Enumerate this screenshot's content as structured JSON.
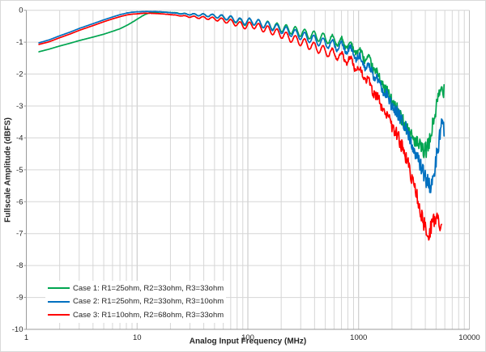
{
  "chart_data": {
    "type": "line",
    "title": "",
    "xlabel": "Analog Input Frequency (MHz)",
    "ylabel": "Fullscale Amplitude (dBFS)",
    "x_axis": {
      "scale": "log",
      "min": 1,
      "max": 10000,
      "tick_labels": [
        "1",
        "10",
        "100",
        "1000",
        "10000"
      ],
      "minor_grid": true
    },
    "y_axis": {
      "min": -10,
      "max": 0,
      "tick_labels": [
        "0",
        "-1",
        "-2",
        "-3",
        "-4",
        "-5",
        "-6",
        "-7",
        "-8",
        "-9",
        "-10"
      ],
      "major_grid": true
    },
    "legend_position": "inside-bottom-left",
    "colors": {
      "grid": "#d6d6d6",
      "decade_grid": "#c3c3c3",
      "axis": "#9b9b9b",
      "text": "#262626"
    },
    "series": [
      {
        "name": "Case 1: R1=25ohm, R2=33ohm, R3=33ohm",
        "color": "#00A550",
        "points": [
          [
            1.3,
            -1.3
          ],
          [
            1.6,
            -1.22
          ],
          [
            2,
            -1.12
          ],
          [
            2.5,
            -1.03
          ],
          [
            3,
            -0.95
          ],
          [
            4,
            -0.84
          ],
          [
            5,
            -0.75
          ],
          [
            6,
            -0.66
          ],
          [
            7,
            -0.58
          ],
          [
            8,
            -0.48
          ],
          [
            9,
            -0.38
          ],
          [
            10,
            -0.28
          ],
          [
            11,
            -0.19
          ],
          [
            12,
            -0.12
          ],
          [
            13,
            -0.08
          ],
          [
            15,
            -0.06
          ],
          [
            18,
            -0.06
          ],
          [
            22,
            -0.08
          ],
          [
            28,
            -0.12
          ],
          [
            35,
            -0.14
          ],
          [
            45,
            -0.16
          ],
          [
            55,
            -0.2
          ],
          [
            70,
            -0.26
          ],
          [
            85,
            -0.35
          ],
          [
            95,
            -0.38
          ],
          [
            110,
            -0.35
          ],
          [
            130,
            -0.42
          ],
          [
            160,
            -0.48
          ],
          [
            200,
            -0.55
          ],
          [
            250,
            -0.62
          ],
          [
            320,
            -0.72
          ],
          [
            400,
            -0.8
          ],
          [
            500,
            -0.88
          ],
          [
            650,
            -0.97
          ],
          [
            800,
            -1.07
          ],
          [
            1000,
            -1.3
          ],
          [
            1200,
            -1.55
          ],
          [
            1400,
            -1.85
          ],
          [
            1800,
            -2.55
          ],
          [
            2300,
            -3.2
          ],
          [
            2900,
            -3.85
          ],
          [
            3400,
            -4.2
          ],
          [
            3900,
            -4.45
          ],
          [
            4300,
            -4.25
          ],
          [
            4700,
            -3.55
          ],
          [
            5100,
            -2.95
          ],
          [
            5500,
            -2.5
          ],
          [
            5900,
            -2.45
          ]
        ]
      },
      {
        "name": "Case 2: R1=25ohm, R2=33ohm, R3=10ohm",
        "color": "#0070C0",
        "points": [
          [
            1.3,
            -1.02
          ],
          [
            1.6,
            -0.93
          ],
          [
            2,
            -0.8
          ],
          [
            2.5,
            -0.68
          ],
          [
            3,
            -0.57
          ],
          [
            4,
            -0.42
          ],
          [
            5,
            -0.3
          ],
          [
            6,
            -0.21
          ],
          [
            7,
            -0.14
          ],
          [
            8,
            -0.09
          ],
          [
            9,
            -0.06
          ],
          [
            10,
            -0.05
          ],
          [
            12,
            -0.04
          ],
          [
            15,
            -0.04
          ],
          [
            18,
            -0.06
          ],
          [
            22,
            -0.09
          ],
          [
            28,
            -0.12
          ],
          [
            35,
            -0.14
          ],
          [
            45,
            -0.16
          ],
          [
            55,
            -0.19
          ],
          [
            70,
            -0.25
          ],
          [
            85,
            -0.33
          ],
          [
            95,
            -0.36
          ],
          [
            110,
            -0.34
          ],
          [
            130,
            -0.42
          ],
          [
            160,
            -0.5
          ],
          [
            200,
            -0.6
          ],
          [
            250,
            -0.7
          ],
          [
            320,
            -0.82
          ],
          [
            400,
            -0.93
          ],
          [
            500,
            -1.03
          ],
          [
            650,
            -1.12
          ],
          [
            800,
            -1.22
          ],
          [
            1000,
            -1.5
          ],
          [
            1200,
            -1.75
          ],
          [
            1400,
            -2.05
          ],
          [
            1800,
            -2.7
          ],
          [
            2300,
            -3.3
          ],
          [
            2900,
            -3.95
          ],
          [
            3400,
            -4.6
          ],
          [
            3900,
            -5.15
          ],
          [
            4400,
            -5.55
          ],
          [
            4800,
            -5.05
          ],
          [
            5200,
            -4.3
          ],
          [
            5600,
            -3.6
          ],
          [
            5900,
            -3.7
          ]
        ]
      },
      {
        "name": "Case 3: R1=10ohm, R2=68ohm, R3=33ohm",
        "color": "#FF0000",
        "points": [
          [
            1.3,
            -1.07
          ],
          [
            1.6,
            -0.99
          ],
          [
            2,
            -0.86
          ],
          [
            2.5,
            -0.74
          ],
          [
            3,
            -0.63
          ],
          [
            4,
            -0.48
          ],
          [
            5,
            -0.36
          ],
          [
            6,
            -0.27
          ],
          [
            7,
            -0.2
          ],
          [
            8,
            -0.15
          ],
          [
            9,
            -0.12
          ],
          [
            10,
            -0.11
          ],
          [
            12,
            -0.09
          ],
          [
            15,
            -0.1
          ],
          [
            18,
            -0.12
          ],
          [
            22,
            -0.15
          ],
          [
            28,
            -0.19
          ],
          [
            35,
            -0.22
          ],
          [
            45,
            -0.25
          ],
          [
            55,
            -0.29
          ],
          [
            70,
            -0.36
          ],
          [
            85,
            -0.45
          ],
          [
            95,
            -0.49
          ],
          [
            110,
            -0.46
          ],
          [
            130,
            -0.54
          ],
          [
            160,
            -0.63
          ],
          [
            200,
            -0.75
          ],
          [
            250,
            -0.88
          ],
          [
            320,
            -1.02
          ],
          [
            400,
            -1.15
          ],
          [
            500,
            -1.28
          ],
          [
            650,
            -1.42
          ],
          [
            800,
            -1.55
          ],
          [
            1000,
            -1.85
          ],
          [
            1200,
            -2.2
          ],
          [
            1400,
            -2.6
          ],
          [
            1800,
            -3.3
          ],
          [
            2300,
            -4.0
          ],
          [
            2900,
            -5.0
          ],
          [
            3400,
            -5.9
          ],
          [
            3800,
            -6.55
          ],
          [
            4150,
            -7.1
          ],
          [
            4500,
            -6.8
          ],
          [
            4900,
            -6.45
          ],
          [
            5200,
            -6.55
          ],
          [
            5600,
            -6.85
          ]
        ]
      }
    ],
    "render_hints": {
      "ripple": {
        "cycles_per_decade": 12,
        "phase": 0.6,
        "amp_profile": [
          [
            20,
            0
          ],
          [
            50,
            0.05
          ],
          [
            100,
            0.1
          ],
          [
            250,
            0.13
          ],
          [
            700,
            0.15
          ],
          [
            1500,
            0.08
          ],
          [
            2500,
            0
          ]
        ]
      },
      "noise": {
        "seed": 42,
        "amp_profile": [
          [
            1,
            0
          ],
          [
            500,
            0.01
          ],
          [
            700,
            0.06
          ],
          [
            1000,
            0.1
          ],
          [
            2000,
            0.18
          ],
          [
            3000,
            0.25
          ],
          [
            6000,
            0.28
          ]
        ]
      }
    }
  }
}
